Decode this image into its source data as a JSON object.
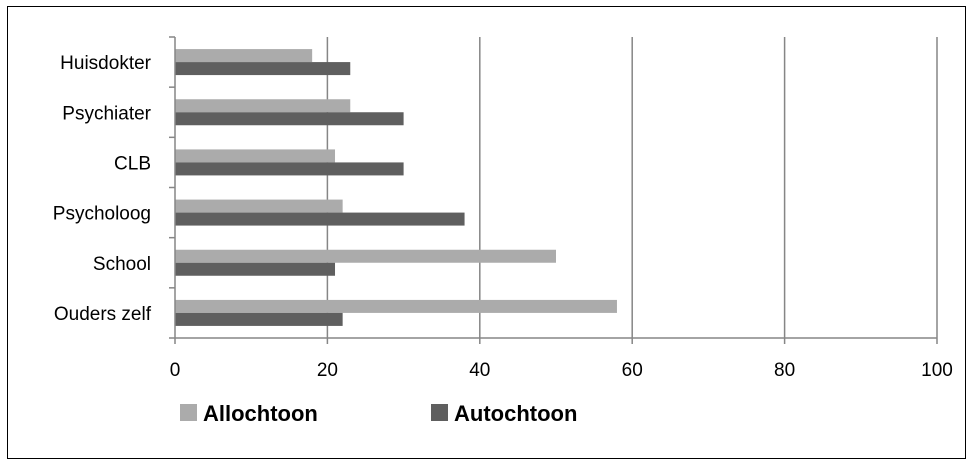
{
  "chart_data": {
    "type": "bar",
    "orientation": "horizontal",
    "categories": [
      "Huisdokter",
      "Psychiater",
      "CLB",
      "Psycholoog",
      "School",
      "Ouders zelf"
    ],
    "series": [
      {
        "name": "Allochtoon",
        "color": "#ababab",
        "values": [
          18,
          23,
          21,
          22,
          50,
          58
        ]
      },
      {
        "name": "Autochtoon",
        "color": "#5f5f5f",
        "values": [
          23,
          30,
          30,
          38,
          21,
          22
        ]
      }
    ],
    "xlim": [
      0,
      100
    ],
    "xticks": [
      0,
      20,
      40,
      60,
      80,
      100
    ],
    "grid": "vertical",
    "legend": "bottom-left"
  }
}
